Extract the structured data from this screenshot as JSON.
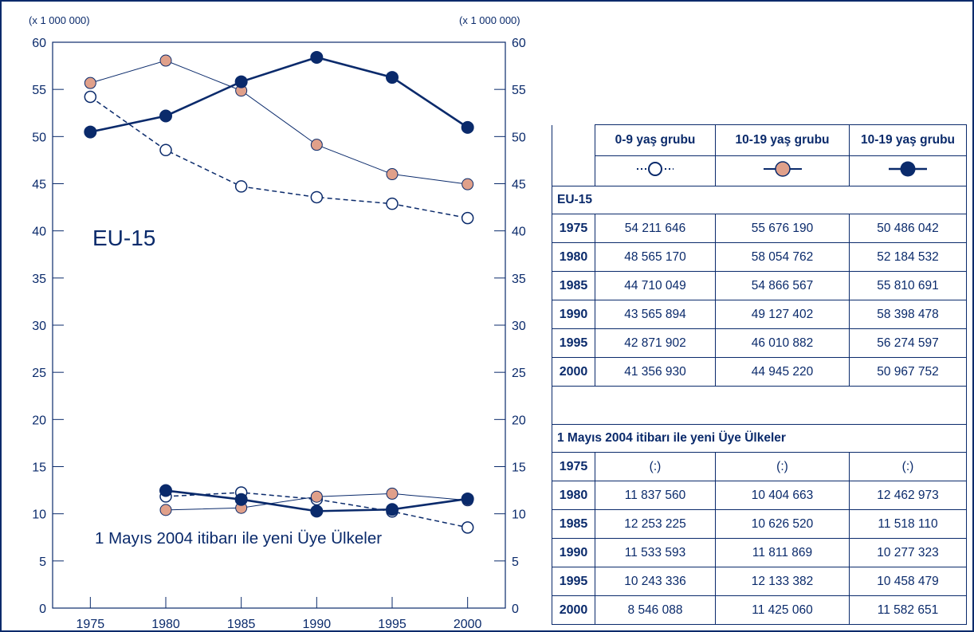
{
  "chart_data": {
    "type": "line",
    "unit_label_left": "(x 1 000 000)",
    "unit_label_right": "(x 1 000 000)",
    "ylim": [
      0,
      60
    ],
    "y_ticks": [
      0,
      5,
      10,
      15,
      20,
      25,
      30,
      35,
      40,
      45,
      50,
      55,
      60
    ],
    "x_ticks": [
      1975,
      1980,
      1985,
      1990,
      1995,
      2000
    ],
    "annotations": {
      "eu15": "EU-15",
      "new_members": "1 Mayıs 2004 itibarı ile yeni Üye Ülkeler"
    },
    "series": [
      {
        "group": "eu15",
        "style": "open-dashed",
        "color": "#ffffff",
        "x": [
          1975,
          1980,
          1985,
          1990,
          1995,
          2000
        ],
        "values": [
          54.211646,
          48.56517,
          44.710049,
          43.565894,
          42.871902,
          41.35693
        ]
      },
      {
        "group": "eu15",
        "style": "salmon-thin",
        "color": "#e0a08a",
        "x": [
          1975,
          1980,
          1985,
          1990,
          1995,
          2000
        ],
        "values": [
          55.67619,
          58.054762,
          54.866567,
          49.127402,
          46.010882,
          44.94522
        ]
      },
      {
        "group": "eu15",
        "style": "navy-thick",
        "color": "#0a2a6b",
        "x": [
          1975,
          1980,
          1985,
          1990,
          1995,
          2000
        ],
        "values": [
          50.486042,
          52.184532,
          55.810691,
          58.398478,
          56.274597,
          50.967752
        ]
      },
      {
        "group": "new",
        "style": "open-dashed",
        "color": "#ffffff",
        "x": [
          1980,
          1985,
          1990,
          1995,
          2000
        ],
        "values": [
          11.83756,
          12.253225,
          11.533593,
          10.243336,
          8.546088
        ]
      },
      {
        "group": "new",
        "style": "salmon-thin",
        "color": "#e0a08a",
        "x": [
          1980,
          1985,
          1990,
          1995,
          2000
        ],
        "values": [
          10.404663,
          10.62652,
          11.811869,
          12.133382,
          11.42506
        ]
      },
      {
        "group": "new",
        "style": "navy-thick",
        "color": "#0a2a6b",
        "x": [
          1980,
          1985,
          1990,
          1995,
          2000
        ],
        "values": [
          12.462973,
          11.51811,
          10.277323,
          10.458479,
          11.582651
        ]
      }
    ]
  },
  "table": {
    "headers": [
      "0-9 yaş grubu",
      "10-19 yaş grubu",
      "10-19 yaş grubu"
    ],
    "section_eu15": "EU-15",
    "eu15_rows": [
      {
        "year": "1975",
        "c1": "54 211 646",
        "c2": "55 676 190",
        "c3": "50 486 042"
      },
      {
        "year": "1980",
        "c1": "48 565 170",
        "c2": "58 054 762",
        "c3": "52 184 532"
      },
      {
        "year": "1985",
        "c1": "44 710 049",
        "c2": "54 866 567",
        "c3": "55 810 691"
      },
      {
        "year": "1990",
        "c1": "43 565 894",
        "c2": "49 127 402",
        "c3": "58 398 478"
      },
      {
        "year": "1995",
        "c1": "42 871 902",
        "c2": "46 010 882",
        "c3": "56 274 597"
      },
      {
        "year": "2000",
        "c1": "41 356 930",
        "c2": "44 945 220",
        "c3": "50 967 752"
      }
    ],
    "section_new": "1 Mayıs 2004 itibarı ile yeni Üye Ülkeler",
    "new_rows": [
      {
        "year": "1975",
        "c1": "(:)",
        "c2": "(:)",
        "c3": "(:)"
      },
      {
        "year": "1980",
        "c1": "11 837 560",
        "c2": "10 404 663",
        "c3": "12 462 973"
      },
      {
        "year": "1985",
        "c1": "12 253 225",
        "c2": "10 626 520",
        "c3": "11 518 110"
      },
      {
        "year": "1990",
        "c1": "11 533 593",
        "c2": "11 811 869",
        "c3": "10 277 323"
      },
      {
        "year": "1995",
        "c1": "10 243 336",
        "c2": "12 133 382",
        "c3": "10 458 479"
      },
      {
        "year": "2000",
        "c1": "8 546 088",
        "c2": "11 425 060",
        "c3": "11 582 651"
      }
    ]
  },
  "colors": {
    "navy": "#0a2a6b",
    "salmon": "#e0a08a",
    "white": "#ffffff"
  }
}
